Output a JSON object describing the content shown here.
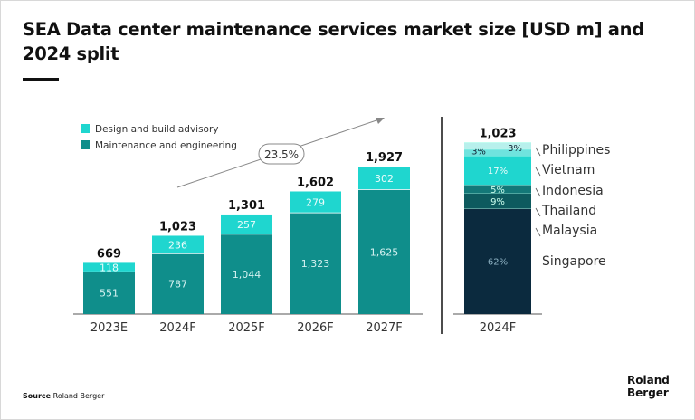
{
  "title": "SEA Data center maintenance services market size [USD m] and 2024 split",
  "source_label": "Source",
  "source_text": "Roland Berger",
  "logo": "Roland Berger",
  "colors": {
    "design": "#1fd6cf",
    "maintenance": "#0f8e8b",
    "singapore": "#0b2a3e",
    "malaysia": "#0d5a5e",
    "thailand": "#137878",
    "indonesia": "#1fd6cf",
    "vietnam": "#6fe3de",
    "philippines": "#b8f0ec"
  },
  "chart_data": [
    {
      "type": "bar",
      "stacked": true,
      "categories": [
        "2023E",
        "2024F",
        "2025F",
        "2026F",
        "2027F"
      ],
      "series": [
        {
          "name": "Maintenance and engineering",
          "values": [
            551,
            787,
            1044,
            1323,
            1625
          ]
        },
        {
          "name": "Design and build advisory",
          "values": [
            118,
            236,
            257,
            279,
            302
          ]
        }
      ],
      "totals": [
        "669",
        "1,023",
        "1,301",
        "1,602",
        "1,927"
      ],
      "value_labels": [
        [
          "551",
          "787",
          "1,044",
          "1,323",
          "1,625"
        ],
        [
          "118",
          "236",
          "257",
          "279",
          "302"
        ]
      ],
      "annotation": "23.5%",
      "legend": "top-left"
    },
    {
      "type": "bar",
      "stacked": true,
      "categories": [
        "2024F"
      ],
      "total": "1,023",
      "segments": [
        {
          "name": "Singapore",
          "value": 62,
          "label": "62%"
        },
        {
          "name": "Malaysia",
          "value": 9,
          "label": "9%"
        },
        {
          "name": "Thailand",
          "value": 5,
          "label": "5%"
        },
        {
          "name": "Indonesia",
          "value": 17,
          "label": "17%"
        },
        {
          "name": "Vietnam",
          "value": 3,
          "label": "3%"
        },
        {
          "name": "Philippines",
          "value": 3,
          "label": "3%"
        }
      ],
      "country_labels": [
        "Philippines",
        "Vietnam",
        "Indonesia",
        "Thailand",
        "Malaysia",
        "Singapore"
      ]
    }
  ]
}
